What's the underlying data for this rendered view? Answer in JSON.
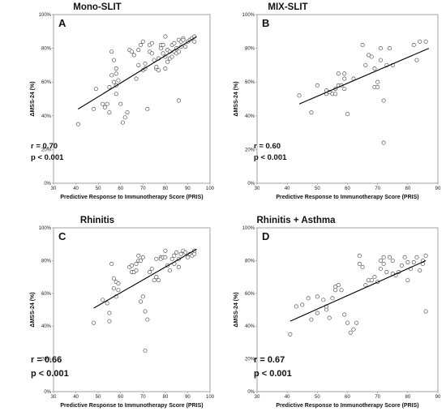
{
  "chart_data": [
    {
      "type": "scatter",
      "letter": "A",
      "title": "Mono-SLIT",
      "xlabel": "Predictive Response to Immunotherapy Score (PRIS)",
      "ylabel": "ΔMSS-24 (%)",
      "xlim": [
        30,
        100
      ],
      "ylim": [
        0,
        100
      ],
      "xticks": [
        "30",
        "40",
        "50",
        "60",
        "70",
        "80",
        "90",
        "100"
      ],
      "yticks": [
        "0%",
        "20%",
        "40%",
        "60%",
        "80%",
        "100%"
      ],
      "grid": false,
      "trendline": {
        "x": [
          41,
          94
        ],
        "y": [
          44,
          87
        ]
      },
      "stats": {
        "r": "r = 0.70",
        "p": "p < 0.001"
      },
      "points": [
        [
          41,
          35
        ],
        [
          48,
          44
        ],
        [
          49,
          56
        ],
        [
          52,
          47
        ],
        [
          53,
          45
        ],
        [
          54,
          47
        ],
        [
          55,
          42
        ],
        [
          55,
          57
        ],
        [
          56,
          64
        ],
        [
          56,
          78
        ],
        [
          57,
          60
        ],
        [
          57,
          73
        ],
        [
          58,
          53
        ],
        [
          58,
          65
        ],
        [
          58,
          68
        ],
        [
          58,
          58
        ],
        [
          59,
          61
        ],
        [
          60,
          47
        ],
        [
          61,
          36
        ],
        [
          62,
          39
        ],
        [
          63,
          42
        ],
        [
          64,
          79
        ],
        [
          65,
          78
        ],
        [
          66,
          76
        ],
        [
          67,
          62
        ],
        [
          68,
          70
        ],
        [
          68,
          79
        ],
        [
          69,
          82
        ],
        [
          70,
          84
        ],
        [
          70,
          67
        ],
        [
          71,
          68
        ],
        [
          71,
          71
        ],
        [
          72,
          44
        ],
        [
          73,
          78
        ],
        [
          73,
          82
        ],
        [
          74,
          77
        ],
        [
          74,
          83
        ],
        [
          75,
          73
        ],
        [
          76,
          68
        ],
        [
          76,
          69
        ],
        [
          77,
          67
        ],
        [
          77,
          74
        ],
        [
          78,
          80
        ],
        [
          78,
          82
        ],
        [
          79,
          82
        ],
        [
          79,
          77
        ],
        [
          80,
          75
        ],
        [
          80,
          87
        ],
        [
          80,
          68
        ],
        [
          81,
          72
        ],
        [
          81,
          79
        ],
        [
          82,
          74
        ],
        [
          82,
          78
        ],
        [
          83,
          82
        ],
        [
          83,
          75
        ],
        [
          84,
          83
        ],
        [
          84,
          78
        ],
        [
          85,
          80
        ],
        [
          85,
          77
        ],
        [
          86,
          85
        ],
        [
          86,
          78
        ],
        [
          86,
          49
        ],
        [
          87,
          81
        ],
        [
          87,
          84
        ],
        [
          88,
          86
        ],
        [
          88,
          85
        ],
        [
          89,
          81
        ],
        [
          90,
          84
        ],
        [
          91,
          85
        ],
        [
          92,
          86
        ],
        [
          93,
          84
        ],
        [
          93,
          87
        ]
      ]
    },
    {
      "type": "scatter",
      "letter": "B",
      "title": "MIX-SLIT",
      "xlabel": "Predictive Response to Immunotherapy Score (PRIS)",
      "ylabel": "ΔMSS-24 (%)",
      "xlim": [
        30,
        90
      ],
      "ylim": [
        0,
        100
      ],
      "xticks": [
        "30",
        "40",
        "50",
        "60",
        "70",
        "80",
        "90"
      ],
      "yticks": [
        "0%",
        "20%",
        "40%",
        "60%",
        "80%",
        "100%"
      ],
      "grid": false,
      "trendline": {
        "x": [
          44,
          87
        ],
        "y": [
          47,
          80
        ]
      },
      "stats": {
        "r": "r = 0.60",
        "p": "p < 0.001"
      },
      "points": [
        [
          44,
          52
        ],
        [
          48,
          42
        ],
        [
          50,
          58
        ],
        [
          53,
          53
        ],
        [
          53,
          55
        ],
        [
          54,
          54
        ],
        [
          55,
          53
        ],
        [
          56,
          56
        ],
        [
          56,
          53
        ],
        [
          57,
          58
        ],
        [
          57,
          65
        ],
        [
          58,
          58
        ],
        [
          59,
          62
        ],
        [
          59,
          56
        ],
        [
          59,
          65
        ],
        [
          60,
          41
        ],
        [
          62,
          62
        ],
        [
          65,
          82
        ],
        [
          66,
          70
        ],
        [
          67,
          76
        ],
        [
          68,
          75
        ],
        [
          69,
          57
        ],
        [
          69,
          68
        ],
        [
          70,
          57
        ],
        [
          70,
          60
        ],
        [
          71,
          80
        ],
        [
          71,
          73
        ],
        [
          72,
          49
        ],
        [
          72,
          24
        ],
        [
          73,
          70
        ],
        [
          74,
          80
        ],
        [
          75,
          70
        ],
        [
          82,
          82
        ],
        [
          83,
          73
        ],
        [
          84,
          84
        ],
        [
          86,
          84
        ]
      ]
    },
    {
      "type": "scatter",
      "letter": "C",
      "title": "Rhinitis",
      "xlabel": "Predictive Response to Immunotherapy Score (PRIS)",
      "ylabel": "ΔMSS-24 (%)",
      "xlim": [
        30,
        100
      ],
      "ylim": [
        0,
        100
      ],
      "xticks": [
        "30",
        "40",
        "50",
        "60",
        "70",
        "80",
        "90",
        "100"
      ],
      "yticks": [
        "0%",
        "20%",
        "40%",
        "60%",
        "80%",
        "100%"
      ],
      "grid": false,
      "trendline": {
        "x": [
          48,
          94
        ],
        "y": [
          51,
          87
        ]
      },
      "stats": {
        "r": "r = 0.66",
        "p": "p < 0.001"
      },
      "points": [
        [
          48,
          42
        ],
        [
          52,
          56
        ],
        [
          54,
          54
        ],
        [
          55,
          48
        ],
        [
          55,
          43
        ],
        [
          56,
          78
        ],
        [
          57,
          63
        ],
        [
          57,
          69
        ],
        [
          58,
          67
        ],
        [
          58,
          58
        ],
        [
          59,
          66
        ],
        [
          59,
          62
        ],
        [
          64,
          76
        ],
        [
          65,
          73
        ],
        [
          65,
          77
        ],
        [
          66,
          73
        ],
        [
          67,
          74
        ],
        [
          67,
          78
        ],
        [
          68,
          80
        ],
        [
          68,
          83
        ],
        [
          69,
          80
        ],
        [
          69,
          55
        ],
        [
          70,
          58
        ],
        [
          70,
          82
        ],
        [
          71,
          49
        ],
        [
          71,
          25
        ],
        [
          72,
          44
        ],
        [
          73,
          73
        ],
        [
          74,
          75
        ],
        [
          75,
          68
        ],
        [
          76,
          81
        ],
        [
          76,
          70
        ],
        [
          77,
          68
        ],
        [
          78,
          82
        ],
        [
          78,
          81
        ],
        [
          79,
          82
        ],
        [
          80,
          82
        ],
        [
          80,
          86
        ],
        [
          81,
          77
        ],
        [
          82,
          74
        ],
        [
          83,
          81
        ],
        [
          84,
          83
        ],
        [
          84,
          78
        ],
        [
          85,
          85
        ],
        [
          86,
          81
        ],
        [
          86,
          76
        ],
        [
          87,
          84
        ],
        [
          88,
          86
        ],
        [
          89,
          85
        ],
        [
          90,
          82
        ],
        [
          91,
          84
        ],
        [
          92,
          83
        ],
        [
          93,
          86
        ],
        [
          93,
          84
        ]
      ]
    },
    {
      "type": "scatter",
      "letter": "D",
      "title": "Rhinitis + Asthma",
      "xlabel": "Predictive Response to Immunotherapy Score (PRIS)",
      "ylabel": "ΔMSS-24 (%)",
      "xlim": [
        30,
        90
      ],
      "ylim": [
        0,
        100
      ],
      "xticks": [
        "30",
        "40",
        "50",
        "60",
        "70",
        "80",
        "90"
      ],
      "yticks": [
        "0%",
        "20%",
        "40%",
        "60%",
        "80%",
        "100%"
      ],
      "grid": false,
      "trendline": {
        "x": [
          41,
          86
        ],
        "y": [
          43,
          80
        ]
      },
      "stats": {
        "r": "r = 0.67",
        "p": "p < 0.001"
      },
      "points": [
        [
          41,
          35
        ],
        [
          43,
          52
        ],
        [
          45,
          53
        ],
        [
          47,
          57
        ],
        [
          48,
          44
        ],
        [
          50,
          58
        ],
        [
          50,
          48
        ],
        [
          52,
          56
        ],
        [
          53,
          50
        ],
        [
          53,
          52
        ],
        [
          54,
          45
        ],
        [
          55,
          57
        ],
        [
          56,
          64
        ],
        [
          56,
          62
        ],
        [
          57,
          65
        ],
        [
          58,
          62
        ],
        [
          59,
          47
        ],
        [
          60,
          42
        ],
        [
          61,
          36
        ],
        [
          62,
          38
        ],
        [
          63,
          42
        ],
        [
          64,
          83
        ],
        [
          64,
          78
        ],
        [
          65,
          76
        ],
        [
          66,
          65
        ],
        [
          67,
          68
        ],
        [
          68,
          68
        ],
        [
          69,
          70
        ],
        [
          70,
          67
        ],
        [
          71,
          75
        ],
        [
          71,
          80
        ],
        [
          72,
          82
        ],
        [
          72,
          78
        ],
        [
          73,
          73
        ],
        [
          74,
          82
        ],
        [
          75,
          80
        ],
        [
          75,
          72
        ],
        [
          76,
          71
        ],
        [
          77,
          73
        ],
        [
          78,
          77
        ],
        [
          79,
          82
        ],
        [
          80,
          68
        ],
        [
          80,
          79
        ],
        [
          81,
          75
        ],
        [
          82,
          79
        ],
        [
          83,
          82
        ],
        [
          84,
          74
        ],
        [
          85,
          78
        ],
        [
          85,
          80
        ],
        [
          86,
          49
        ],
        [
          86,
          83
        ]
      ]
    }
  ]
}
